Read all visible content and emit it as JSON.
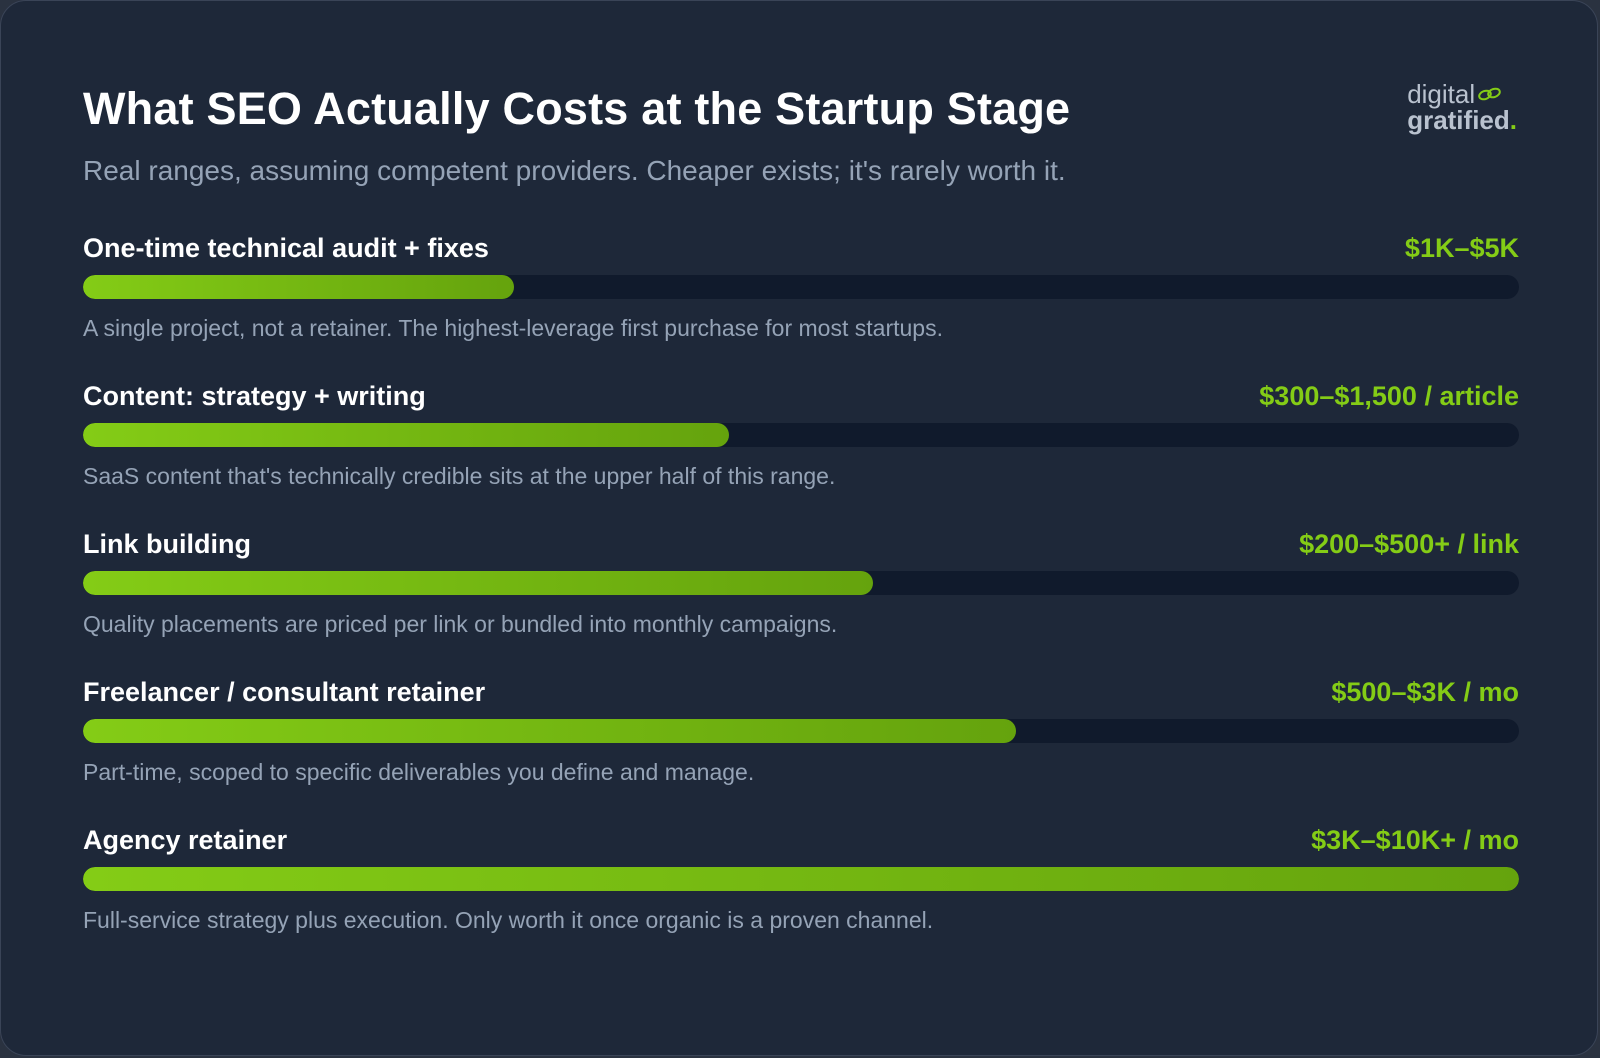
{
  "header": {
    "title": "What SEO Actually Costs at the Startup Stage",
    "subtitle": "Real ranges, assuming competent providers. Cheaper exists; it's rarely worth it."
  },
  "logo": {
    "line1": "digital",
    "line2": "gratified",
    "dot": ".",
    "icon": "link-icon"
  },
  "colors": {
    "accent": "#84cc16",
    "accent_dark": "#65a30d",
    "background": "#1e2839",
    "track": "#101a2c"
  },
  "chart_data": {
    "type": "bar",
    "orientation": "horizontal",
    "xlim": [
      0,
      1
    ],
    "categories": [
      "One-time technical audit + fixes",
      "Content: strategy + writing",
      "Link building",
      "Freelancer / consultant retainer",
      "Agency retainer"
    ],
    "values": [
      0.3,
      0.45,
      0.55,
      0.65,
      1.0
    ],
    "value_labels": [
      "$1K–$5K",
      "$300–$1,500 / article",
      "$200–$500+ / link",
      "$500–$3K / mo",
      "$3K–$10K+ / mo"
    ],
    "descriptions": [
      "A single project, not a retainer. The highest-leverage first purchase for most startups.",
      "SaaS content that's technically credible sits at the upper half of this range.",
      "Quality placements are priced per link or bundled into monthly campaigns.",
      "Part-time, scoped to specific deliverables you define and manage.",
      "Full-service strategy plus execution. Only worth it once organic is a proven channel."
    ]
  }
}
